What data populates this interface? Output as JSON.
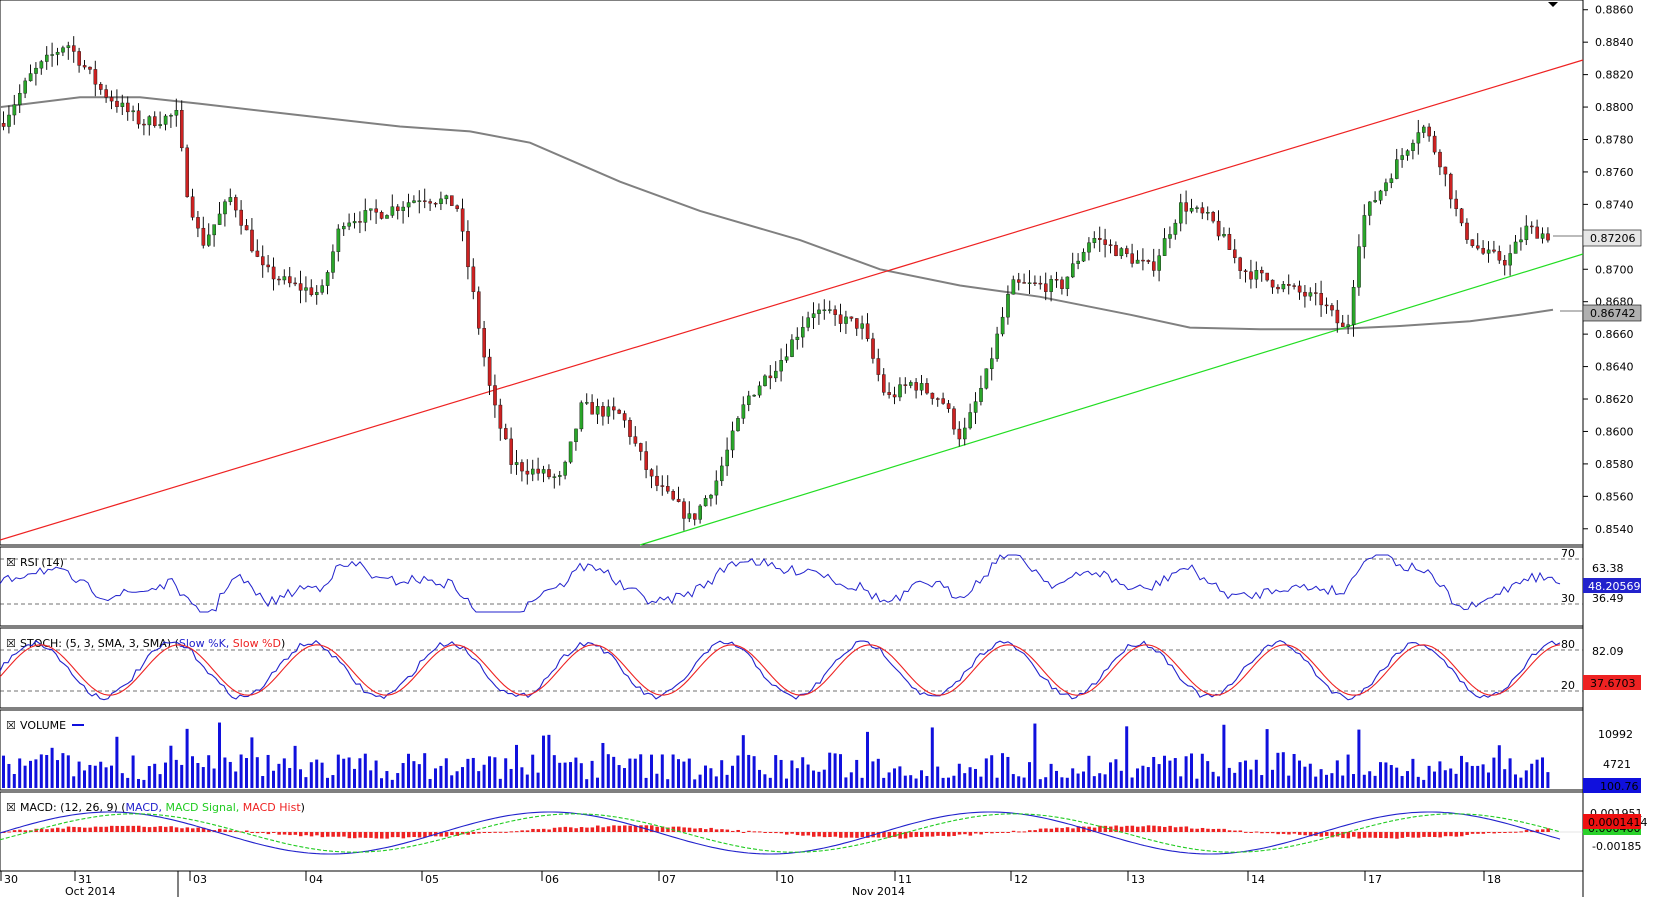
{
  "chart_data": {
    "type": "candlestick",
    "instrument_panels": [
      {
        "id": "price",
        "ylim": [
          0.853,
          0.8866
        ],
        "y_ticks": [
          "0.8860",
          "0.8840",
          "0.8820",
          "0.8800",
          "0.8780",
          "0.8760",
          "0.8740",
          "0.8720",
          "0.8700",
          "0.8680",
          "0.8660",
          "0.8640",
          "0.8620",
          "0.8600",
          "0.8580",
          "0.8560",
          "0.8540"
        ],
        "current_price_label": "0.87206",
        "current_price": 0.87206,
        "ma_label": "0.86742",
        "ma_value": 0.86742,
        "resistance_color": "#ee2222",
        "support_color": "#22dd22",
        "ma_color": "#808080",
        "up_color": "#2aa52a",
        "down_color": "#cc2222"
      }
    ],
    "x_labels": [
      "30",
      "31",
      "03",
      "04",
      "05",
      "06",
      "07",
      "10",
      "11",
      "12",
      "13",
      "14",
      "17",
      "18"
    ],
    "x_months": [
      "Oct 2014",
      "Nov 2014"
    ],
    "rsi": {
      "title": "RSI (14)",
      "levels": [
        "70",
        "30"
      ],
      "right_labels": [
        "63.38",
        "36.49"
      ],
      "current": "48.20569",
      "color": "#2222cc"
    },
    "stoch": {
      "title_prefix": "STOCH: (5, 3, SMA, 3, SMA)",
      "k_label": "Slow %K,",
      "d_label": "Slow %D",
      "levels": [
        "80",
        "20"
      ],
      "right_label": "82.09",
      "current": "37.6703",
      "k_color": "#2222cc",
      "d_color": "#ee2222"
    },
    "volume": {
      "title": "VOLUME",
      "right_labels": [
        "10992",
        "4721"
      ],
      "current": "100.76",
      "color": "#1010dd"
    },
    "macd": {
      "title_prefix": "MACD: (12, 26, 9)",
      "macd_label": "MACD,",
      "signal_label": "MACD Signal,",
      "hist_label": "MACD Hist",
      "right_labels": [
        "0.001951",
        "-0.00185"
      ],
      "current": "0.0001414",
      "current_signal": "0.000460",
      "macd_color": "#2222cc",
      "signal_color": "#22cc22",
      "hist_color": "#ee2222"
    }
  }
}
